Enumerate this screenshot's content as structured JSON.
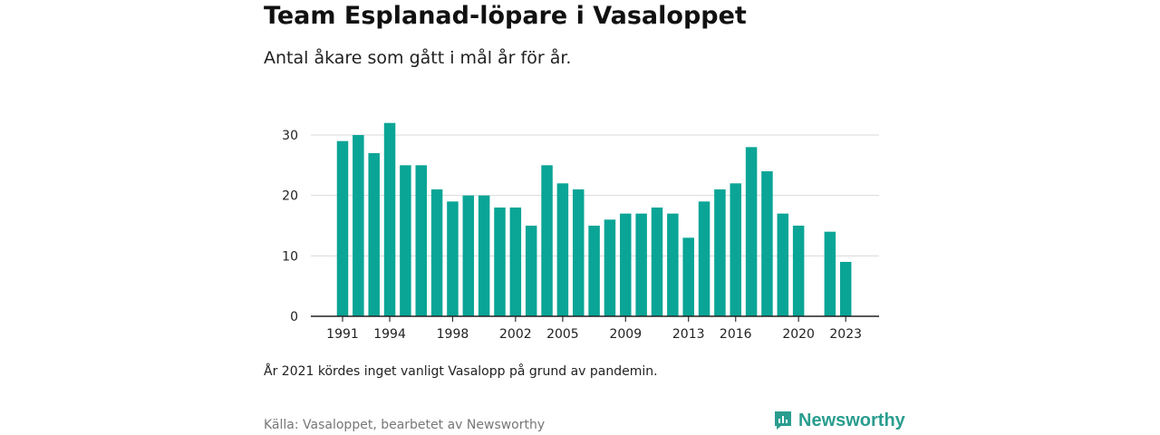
{
  "title": "Team Esplanad-löpare i Vasaloppet",
  "subtitle": "Antal åkare som gått i mål år för år.",
  "note": "År 2021 kördes inget vanligt Vasalopp på grund av pandemin.",
  "source": "Källa: Vasaloppet, bearbetet av Newsworthy",
  "brand": {
    "name": "Newsworthy",
    "icon": "newsworthy-logo-icon",
    "color": "#2a9d8f"
  },
  "chart_data": {
    "type": "bar",
    "title": "Team Esplanad-löpare i Vasaloppet",
    "xlabel": "",
    "ylabel": "",
    "bar_color": "#0aa596",
    "grid": true,
    "ylim": [
      0,
      32
    ],
    "yticks": [
      0,
      10,
      20,
      30
    ],
    "xtick_labels": [
      "1991",
      "1994",
      "1998",
      "2002",
      "2005",
      "2009",
      "2013",
      "2016",
      "2020",
      "2023"
    ],
    "categories": [
      1991,
      1992,
      1993,
      1994,
      1995,
      1996,
      1997,
      1998,
      1999,
      2000,
      2001,
      2002,
      2003,
      2004,
      2005,
      2006,
      2007,
      2008,
      2009,
      2010,
      2011,
      2012,
      2013,
      2014,
      2015,
      2016,
      2017,
      2018,
      2019,
      2020,
      2021,
      2022,
      2023
    ],
    "values": [
      29,
      30,
      27,
      32,
      25,
      25,
      21,
      19,
      20,
      20,
      18,
      18,
      15,
      25,
      22,
      21,
      15,
      16,
      17,
      17,
      18,
      17,
      13,
      19,
      21,
      22,
      28,
      24,
      17,
      15,
      null,
      14,
      9
    ]
  }
}
